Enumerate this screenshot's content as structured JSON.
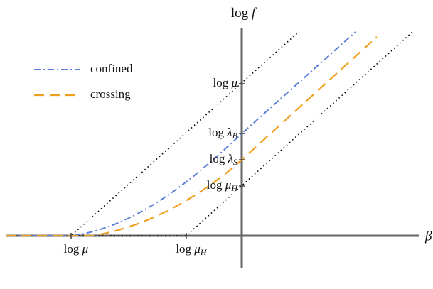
{
  "axes": {
    "y_label": {
      "fn": "log",
      "var": "f"
    },
    "x_label": "β"
  },
  "y_ticks": [
    {
      "fn": "log",
      "var": "μ"
    },
    {
      "fn": "log",
      "var": "λ",
      "sub": "B"
    },
    {
      "fn": "log",
      "var": "λ",
      "sub": "S"
    },
    {
      "fn": "log",
      "var": "μ",
      "sub": "H"
    }
  ],
  "x_ticks": [
    {
      "sign": "−",
      "fn": "log",
      "var": "μ"
    },
    {
      "sign": "−",
      "fn": "log",
      "var": "μ",
      "sub": "H"
    }
  ],
  "legend": [
    "confined",
    "crossing"
  ]
}
